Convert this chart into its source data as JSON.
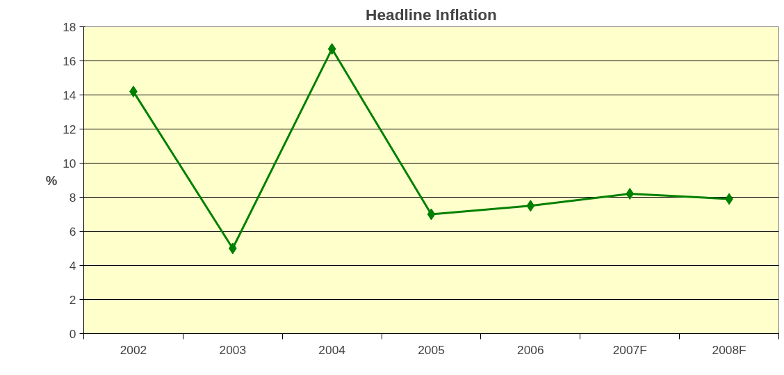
{
  "chart_data": {
    "type": "line",
    "title": "Headline Inflation",
    "ylabel": "%",
    "categories": [
      "2002",
      "2003",
      "2004",
      "2005",
      "2006",
      "2007F",
      "2008F"
    ],
    "series": [
      {
        "color": "#008000",
        "values": [
          14.2,
          5.0,
          16.7,
          7.0,
          7.5,
          8.2,
          7.9
        ]
      }
    ],
    "ylim": [
      0,
      18
    ],
    "yticks": [
      0,
      2,
      4,
      6,
      8,
      10,
      12,
      14,
      16,
      18
    ],
    "grid": "y",
    "marker": "diamond",
    "line_style": "solid"
  }
}
